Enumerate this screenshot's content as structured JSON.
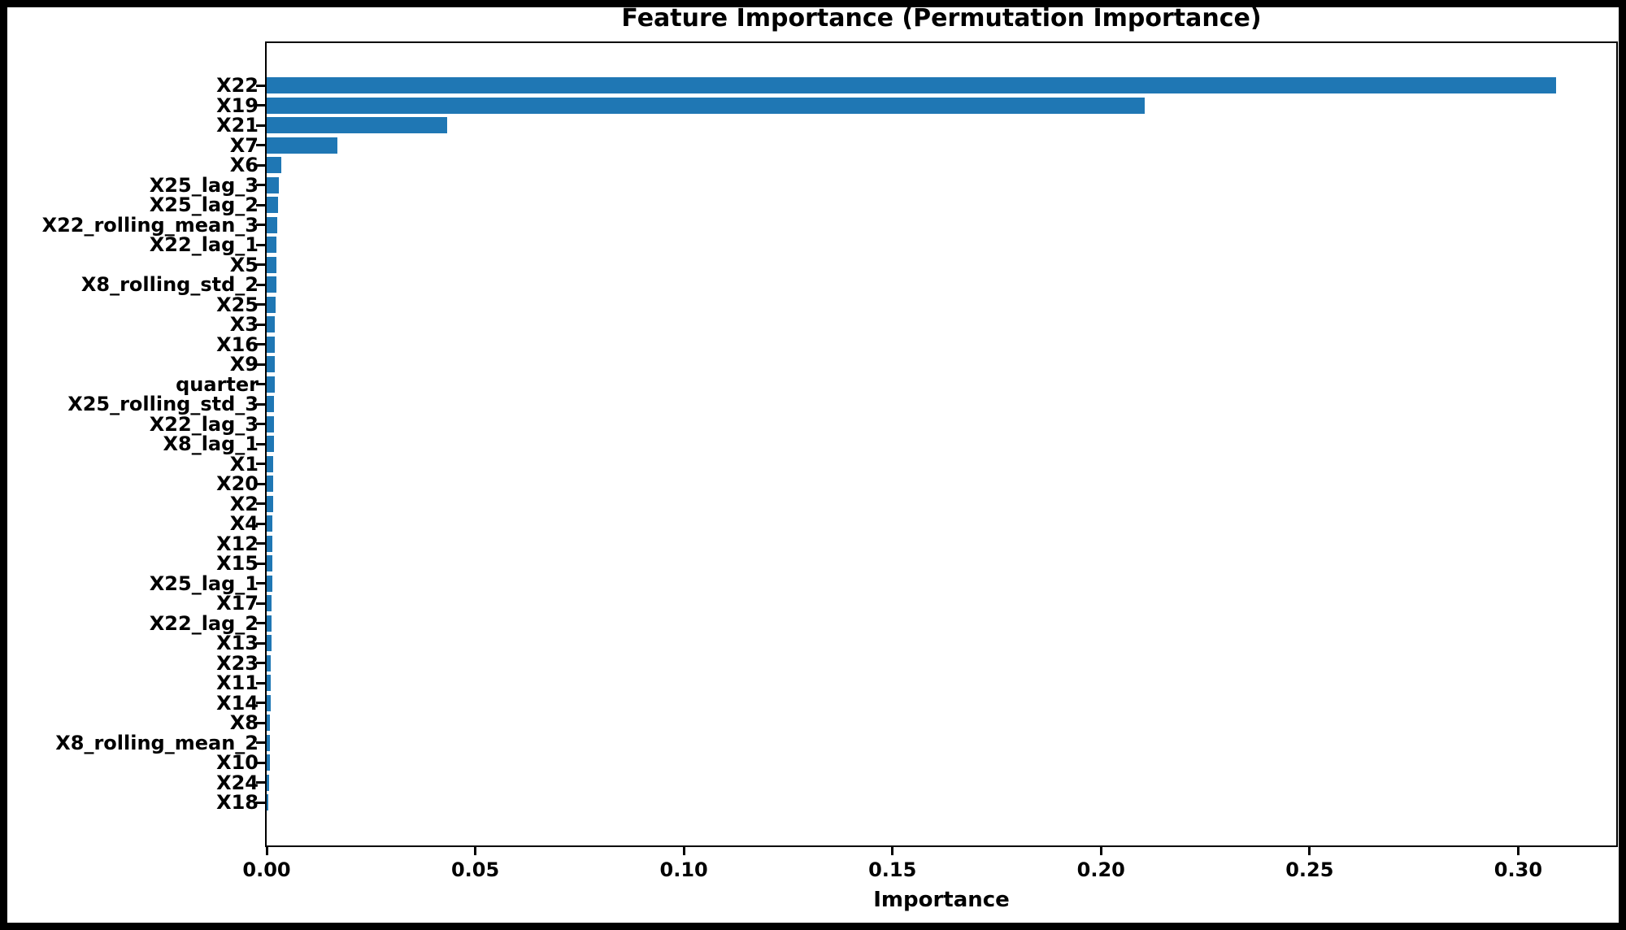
{
  "chart_data": {
    "type": "bar",
    "orientation": "horizontal",
    "title": "Feature Importance (Permutation Importance)",
    "xlabel": "Importance",
    "ylabel": "",
    "grid": false,
    "legend": null,
    "bar_color": "#1f77b4",
    "spine_color": "#000000",
    "xlim": [
      0,
      0.3235
    ],
    "xticks": [
      0.0,
      0.05,
      0.1,
      0.15,
      0.2,
      0.25,
      0.3
    ],
    "xtick_labels": [
      "0.00",
      "0.05",
      "0.10",
      "0.15",
      "0.20",
      "0.25",
      "0.30"
    ],
    "categories": [
      "X22",
      "X19",
      "X21",
      "X7",
      "X6",
      "X25_lag_3",
      "X25_lag_2",
      "X22_rolling_mean_3",
      "X22_lag_1",
      "X5",
      "X8_rolling_std_2",
      "X25",
      "X3",
      "X16",
      "X9",
      "quarter",
      "X25_rolling_std_3",
      "X22_lag_3",
      "X8_lag_1",
      "X1",
      "X20",
      "X2",
      "X4",
      "X12",
      "X15",
      "X25_lag_1",
      "X17",
      "X22_lag_2",
      "X13",
      "X23",
      "X11",
      "X14",
      "X8",
      "X8_rolling_mean_2",
      "X10",
      "X24",
      "X18"
    ],
    "values": [
      0.309,
      0.2105,
      0.0432,
      0.0169,
      0.0035,
      0.003,
      0.0027,
      0.0025,
      0.0024,
      0.0023,
      0.0023,
      0.0022,
      0.002,
      0.002,
      0.0019,
      0.0019,
      0.0018,
      0.0018,
      0.0017,
      0.0016,
      0.0016,
      0.0015,
      0.0014,
      0.0014,
      0.0013,
      0.0013,
      0.0012,
      0.0012,
      0.0011,
      0.001,
      0.001,
      0.0009,
      0.0008,
      0.0008,
      0.0007,
      0.0006,
      0.0004
    ]
  }
}
